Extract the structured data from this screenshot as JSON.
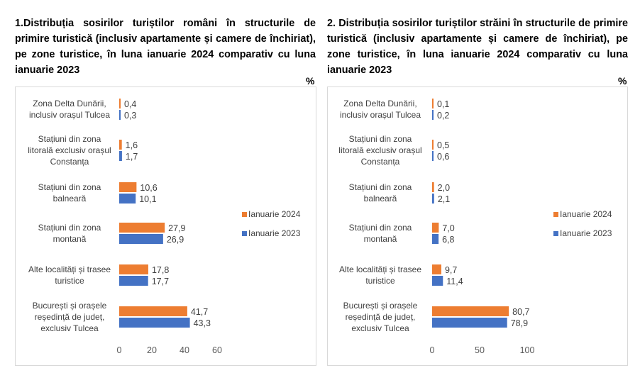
{
  "chart_data": [
    {
      "type": "bar",
      "orientation": "horizontal",
      "title_lines": [
        "1.Distribuția sosirilor turiștilor români în structurile de",
        "primire turistică (inclusiv apartamente și camere de închiriat),",
        "pe zone turistice, în luna ianuarie 2024 comparativ cu luna",
        "ianuarie 2023"
      ],
      "unit": "%",
      "categories": [
        [
          "Zona Delta Dunării,",
          "inclusiv orașul Tulcea"
        ],
        [
          "Stațiuni din zona",
          "litorală exclusiv orașul",
          "Constanța"
        ],
        [
          "Stațiuni din zona",
          "balneară"
        ],
        [
          "Stațiuni din zona",
          "montană"
        ],
        [
          "Alte localități și trasee",
          "turistice"
        ],
        [
          "București și orașele",
          "reședință de județ,",
          "exclusiv Tulcea"
        ]
      ],
      "series": [
        {
          "name": "Ianuarie 2024",
          "color": "#ed7d31",
          "values": [
            0.4,
            1.6,
            10.6,
            27.9,
            17.8,
            41.7
          ],
          "labels": [
            "0,4",
            "1,6",
            "10,6",
            "27,9",
            "17,8",
            "41,7"
          ]
        },
        {
          "name": "Ianuarie 2023",
          "color": "#4472c4",
          "values": [
            0.3,
            1.7,
            10.1,
            26.9,
            17.7,
            43.3
          ],
          "labels": [
            "0,3",
            "1,7",
            "10,1",
            "26,9",
            "17,7",
            "43,3"
          ]
        }
      ],
      "xlim": [
        0,
        60
      ],
      "ticks": [
        0,
        20,
        40,
        60
      ],
      "tick_labels": [
        "0",
        "20",
        "40",
        "60"
      ],
      "legend_position": "right",
      "grid": false
    },
    {
      "type": "bar",
      "orientation": "horizontal",
      "title_lines": [
        "2. Distribuția sosirilor turiștilor străini în structurile de primire",
        "turistică (inclusiv apartamente și camere de închiriat), pe",
        "zone turistice, în luna ianuarie 2024 comparativ cu luna",
        "ianuarie 2023"
      ],
      "unit": "%",
      "categories": [
        [
          "Zona Delta Dunării,",
          "inclusiv orașul Tulcea"
        ],
        [
          "Stațiuni din zona",
          "litorală exclusiv orașul",
          "Constanța"
        ],
        [
          "Stațiuni din zona",
          "balneară"
        ],
        [
          "Stațiuni din zona",
          "montană"
        ],
        [
          "Alte localități și trasee",
          "turistice"
        ],
        [
          "București și orașele",
          "reședință de județ,",
          "exclusiv Tulcea"
        ]
      ],
      "series": [
        {
          "name": "Ianuarie 2024",
          "color": "#ed7d31",
          "values": [
            0.1,
            0.5,
            2.0,
            7.0,
            9.7,
            80.7
          ],
          "labels": [
            "0,1",
            "0,5",
            "2,0",
            "7,0",
            "9,7",
            "80,7"
          ]
        },
        {
          "name": "Ianuarie 2023",
          "color": "#4472c4",
          "values": [
            0.2,
            0.6,
            2.1,
            6.8,
            11.4,
            78.9
          ],
          "labels": [
            "0,2",
            "0,6",
            "2,1",
            "6,8",
            "11,4",
            "78,9"
          ]
        }
      ],
      "xlim": [
        0,
        100
      ],
      "ticks": [
        0,
        50,
        100
      ],
      "tick_labels": [
        "0",
        "50",
        "100"
      ],
      "legend_position": "right",
      "grid": false
    }
  ]
}
